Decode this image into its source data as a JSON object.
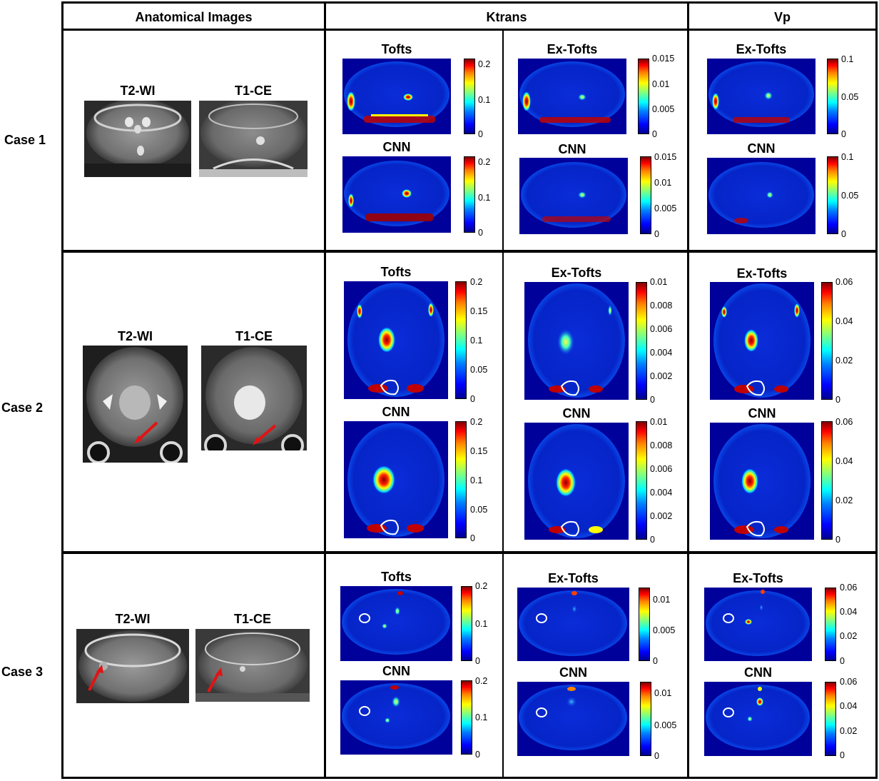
{
  "table": {
    "headers": [
      "Anatomical Images",
      "Ktrans",
      "Vp"
    ],
    "cases": [
      "Case 1",
      "Case 2",
      "Case 3"
    ]
  },
  "anatomical": {
    "t2": "T2-WI",
    "t1": "T1-CE"
  },
  "methods": {
    "tofts": "Tofts",
    "extofts": "Ex-Tofts",
    "cnn": "CNN"
  },
  "colorbars": {
    "c1_ktrans_tofts": [
      "0.2",
      "0.1",
      "0"
    ],
    "c1_ktrans_extofts": [
      "0.015",
      "0.01",
      "0.005",
      "0"
    ],
    "c1_vp": [
      "0.1",
      "0.05",
      "0"
    ],
    "c2_ktrans_tofts": [
      "0.2",
      "0.15",
      "0.1",
      "0.05",
      "0"
    ],
    "c2_ktrans_extofts": [
      "0.01",
      "0.008",
      "0.006",
      "0.004",
      "0.002",
      "0"
    ],
    "c2_vp": [
      "0.06",
      "0.04",
      "0.02",
      "0"
    ],
    "c3_ktrans_tofts": [
      "0.2",
      "0.1",
      "0"
    ],
    "c3_ktrans_extofts": [
      "0.01",
      "0.005",
      "0"
    ],
    "c3_vp": [
      "0.06",
      "0.04",
      "0.02",
      "0"
    ]
  },
  "colors": {
    "map_background": "#0000a0",
    "colormap": "jet",
    "arrow": "#e11414",
    "tumor_outline": "#ffffff"
  }
}
